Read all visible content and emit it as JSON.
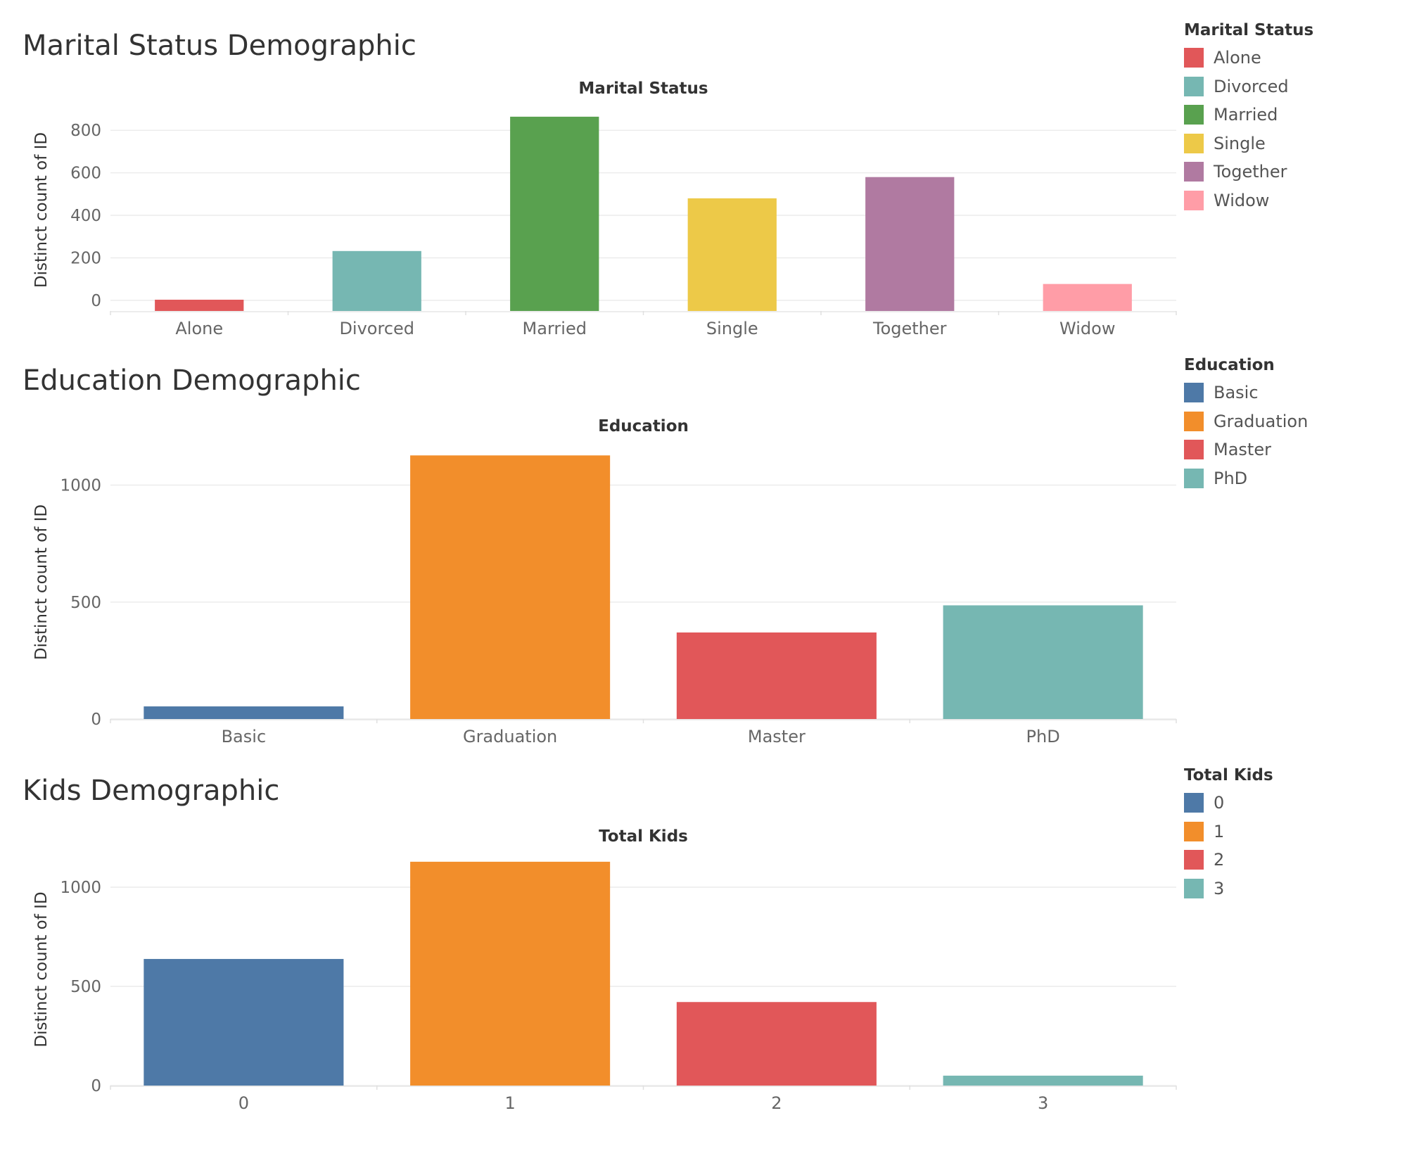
{
  "sections": [
    {
      "title": "Marital Status Demographic",
      "legend": {
        "title": "Marital Status",
        "items": [
          {
            "label": "Alone",
            "color": "#e15759"
          },
          {
            "label": "Divorced",
            "color": "#76b7b2"
          },
          {
            "label": "Married",
            "color": "#59a14f"
          },
          {
            "label": "Single",
            "color": "#edc948"
          },
          {
            "label": "Together",
            "color": "#b07aa1"
          },
          {
            "label": "Widow",
            "color": "#ff9da7"
          }
        ]
      }
    },
    {
      "title": "Education Demographic",
      "legend": {
        "title": "Education",
        "items": [
          {
            "label": "Basic",
            "color": "#4e79a7"
          },
          {
            "label": "Graduation",
            "color": "#f28e2b"
          },
          {
            "label": "Master",
            "color": "#e15759"
          },
          {
            "label": "PhD",
            "color": "#76b7b2"
          }
        ]
      }
    },
    {
      "title": "Kids Demographic",
      "legend": {
        "title": "Total Kids",
        "items": [
          {
            "label": "0",
            "color": "#4e79a7"
          },
          {
            "label": "1",
            "color": "#f28e2b"
          },
          {
            "label": "2",
            "color": "#e15759"
          },
          {
            "label": "3",
            "color": "#76b7b2"
          }
        ]
      }
    }
  ],
  "chart_data": [
    {
      "type": "bar",
      "title": "Marital Status",
      "xlabel": "",
      "ylabel": "Distinct count of ID",
      "categories": [
        "Alone",
        "Divorced",
        "Married",
        "Single",
        "Together",
        "Widow"
      ],
      "values": [
        3,
        232,
        864,
        480,
        580,
        77
      ],
      "colors": [
        "#e15759",
        "#76b7b2",
        "#59a14f",
        "#edc948",
        "#b07aa1",
        "#ff9da7"
      ],
      "yticks": [
        0,
        200,
        400,
        600,
        800
      ],
      "ylim": [
        -50,
        900
      ],
      "grid": true
    },
    {
      "type": "bar",
      "title": "Education",
      "xlabel": "",
      "ylabel": "Distinct count of ID",
      "categories": [
        "Basic",
        "Graduation",
        "Master",
        "PhD"
      ],
      "values": [
        54,
        1127,
        370,
        486
      ],
      "colors": [
        "#4e79a7",
        "#f28e2b",
        "#e15759",
        "#76b7b2"
      ],
      "yticks": [
        0,
        500,
        1000
      ],
      "ylim": [
        0,
        1170
      ],
      "grid": true
    },
    {
      "type": "bar",
      "title": "Total Kids",
      "xlabel": "",
      "ylabel": "Distinct count of ID",
      "categories": [
        "0",
        "1",
        "2",
        "3"
      ],
      "values": [
        638,
        1128,
        421,
        50
      ],
      "colors": [
        "#4e79a7",
        "#f28e2b",
        "#e15759",
        "#76b7b2"
      ],
      "yticks": [
        0,
        500,
        1000
      ],
      "ylim": [
        0,
        1170
      ],
      "grid": true
    }
  ]
}
